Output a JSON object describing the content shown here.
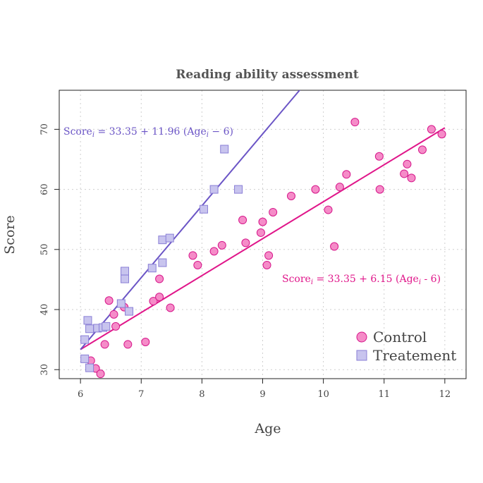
{
  "chart_data": {
    "type": "scatter",
    "title": "Reading ability assessment",
    "xlabel": "Age",
    "ylabel": "Score",
    "xlim": [
      5.65,
      12.35
    ],
    "ylim": [
      28.5,
      76.5
    ],
    "xticks": [
      6,
      7,
      8,
      9,
      10,
      11,
      12
    ],
    "yticks": [
      30,
      40,
      50,
      60,
      70
    ],
    "grid": true,
    "legend_position": "bottom-right",
    "series": [
      {
        "name": "Control",
        "marker": "circle",
        "fill": "#f58cc8",
        "stroke": "#d6168a",
        "points": [
          [
            6.17,
            31.5
          ],
          [
            6.25,
            30.2
          ],
          [
            6.33,
            29.3
          ],
          [
            6.4,
            34.2
          ],
          [
            6.47,
            41.5
          ],
          [
            6.55,
            39.2
          ],
          [
            6.58,
            37.2
          ],
          [
            6.72,
            40.4
          ],
          [
            6.78,
            34.2
          ],
          [
            7.07,
            34.6
          ],
          [
            7.2,
            41.4
          ],
          [
            7.3,
            42.1
          ],
          [
            7.3,
            45.1
          ],
          [
            7.48,
            40.3
          ],
          [
            7.85,
            49.0
          ],
          [
            7.93,
            47.4
          ],
          [
            8.2,
            49.7
          ],
          [
            8.33,
            50.7
          ],
          [
            8.67,
            54.9
          ],
          [
            8.72,
            51.1
          ],
          [
            8.97,
            52.8
          ],
          [
            9.0,
            54.6
          ],
          [
            9.07,
            47.4
          ],
          [
            9.1,
            49.0
          ],
          [
            9.17,
            56.2
          ],
          [
            9.47,
            58.9
          ],
          [
            9.87,
            60.0
          ],
          [
            10.08,
            56.6
          ],
          [
            10.18,
            50.5
          ],
          [
            10.27,
            60.4
          ],
          [
            10.38,
            62.5
          ],
          [
            10.52,
            71.2
          ],
          [
            10.92,
            65.5
          ],
          [
            10.93,
            60.0
          ],
          [
            11.33,
            62.6
          ],
          [
            11.38,
            64.2
          ],
          [
            11.45,
            61.9
          ],
          [
            11.63,
            66.6
          ],
          [
            11.78,
            70.0
          ],
          [
            11.95,
            69.2
          ]
        ]
      },
      {
        "name": "Treatement",
        "marker": "square",
        "fill": "#c8c4ee",
        "stroke": "#8a7fd6",
        "points": [
          [
            6.07,
            35.0
          ],
          [
            6.07,
            31.8
          ],
          [
            6.12,
            38.2
          ],
          [
            6.15,
            36.8
          ],
          [
            6.15,
            30.3
          ],
          [
            6.28,
            36.9
          ],
          [
            6.37,
            37.0
          ],
          [
            6.42,
            37.2
          ],
          [
            6.67,
            41.0
          ],
          [
            6.73,
            46.4
          ],
          [
            6.73,
            45.1
          ],
          [
            6.8,
            39.7
          ],
          [
            7.18,
            46.9
          ],
          [
            7.35,
            51.6
          ],
          [
            7.35,
            47.8
          ],
          [
            7.47,
            51.9
          ],
          [
            8.03,
            56.7
          ],
          [
            8.2,
            60.0
          ],
          [
            8.37,
            66.7
          ],
          [
            8.6,
            60.0
          ]
        ]
      }
    ],
    "fit_lines": [
      {
        "series": "Control",
        "intercept": 33.35,
        "slope": 6.15,
        "x0": 6,
        "color": "#e0168a",
        "x_range": [
          6,
          12
        ]
      },
      {
        "series": "Treatement",
        "intercept": 33.35,
        "slope": 11.96,
        "x0": 6,
        "color": "#6b55c6",
        "x_range": [
          6,
          12
        ]
      }
    ],
    "annotations": [
      {
        "series": "Treatement",
        "text_parts": [
          "Score",
          "i",
          " = 33.35 + 11.96 (Age",
          "i",
          " − 6)"
        ],
        "color": "#6b55c6"
      },
      {
        "series": "Control",
        "text_parts": [
          "Score",
          "i",
          " = 33.35 + 6.15 (Age",
          "i",
          " - 6)"
        ],
        "color": "#e0168a"
      }
    ]
  }
}
